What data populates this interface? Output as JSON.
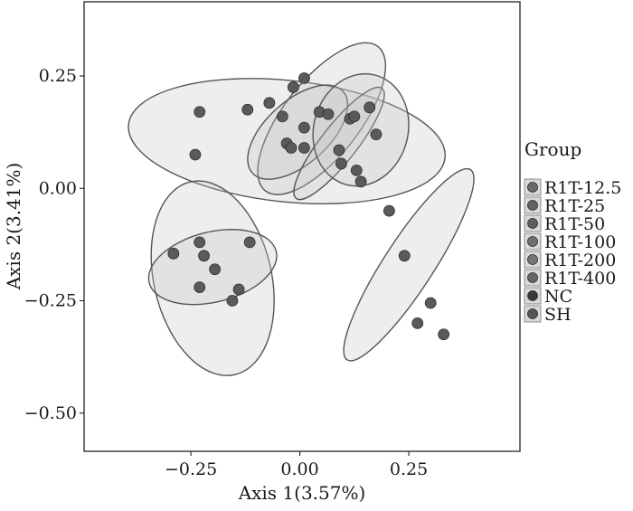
{
  "chart_data": {
    "type": "scatter",
    "xlabel": "Axis 1(3.57%)",
    "ylabel": "Axis 2(3.41%)",
    "xlim": [
      -0.495,
      0.505
    ],
    "ylim": [
      -0.585,
      0.415
    ],
    "xticks": [
      -0.25,
      0.0,
      0.25
    ],
    "yticks": [
      0.25,
      0.0,
      -0.25,
      -0.5
    ],
    "xtick_labels": [
      "−0.25",
      "0.00",
      "0.25"
    ],
    "ytick_labels": [
      "0.25",
      "0.00",
      "−0.25",
      "−0.50"
    ],
    "grid": false,
    "legend": {
      "title": "Group",
      "position": "right",
      "entries": [
        "R1T-12.5",
        "R1T-25",
        "R1T-50",
        "R1T-100",
        "R1T-200",
        "R1T-400",
        "NC",
        "SH"
      ]
    },
    "ellipses": [
      {
        "cx": -0.03,
        "cy": 0.105,
        "rx": 0.365,
        "ry": 0.135,
        "angle": 6
      },
      {
        "cx": 0.05,
        "cy": 0.155,
        "rx": 0.21,
        "ry": 0.085,
        "angle": -52
      },
      {
        "cx": -0.005,
        "cy": 0.125,
        "rx": 0.14,
        "ry": 0.07,
        "angle": -42
      },
      {
        "cx": 0.09,
        "cy": 0.1,
        "rx": 0.16,
        "ry": 0.04,
        "angle": -52
      },
      {
        "cx": 0.14,
        "cy": 0.13,
        "rx": 0.13,
        "ry": 0.105,
        "angle": -75
      },
      {
        "cx": 0.25,
        "cy": -0.17,
        "rx": 0.26,
        "ry": 0.055,
        "angle": -57
      },
      {
        "cx": -0.2,
        "cy": -0.2,
        "rx": 0.135,
        "ry": 0.22,
        "angle": -13
      },
      {
        "cx": -0.2,
        "cy": -0.175,
        "rx": 0.15,
        "ry": 0.078,
        "angle": -14
      }
    ],
    "points": [
      {
        "x": -0.23,
        "y": 0.17
      },
      {
        "x": -0.24,
        "y": 0.075
      },
      {
        "x": -0.12,
        "y": 0.175
      },
      {
        "x": -0.07,
        "y": 0.19
      },
      {
        "x": -0.04,
        "y": 0.16
      },
      {
        "x": -0.03,
        "y": 0.1
      },
      {
        "x": -0.02,
        "y": 0.09
      },
      {
        "x": -0.015,
        "y": 0.225
      },
      {
        "x": 0.01,
        "y": 0.245
      },
      {
        "x": 0.01,
        "y": 0.135
      },
      {
        "x": 0.01,
        "y": 0.09
      },
      {
        "x": 0.045,
        "y": 0.17
      },
      {
        "x": 0.065,
        "y": 0.165
      },
      {
        "x": 0.09,
        "y": 0.085
      },
      {
        "x": 0.095,
        "y": 0.055
      },
      {
        "x": 0.115,
        "y": 0.155
      },
      {
        "x": 0.125,
        "y": 0.16
      },
      {
        "x": 0.13,
        "y": 0.04
      },
      {
        "x": 0.14,
        "y": 0.015
      },
      {
        "x": 0.16,
        "y": 0.18
      },
      {
        "x": 0.175,
        "y": 0.12
      },
      {
        "x": 0.205,
        "y": -0.05
      },
      {
        "x": 0.24,
        "y": -0.15
      },
      {
        "x": 0.27,
        "y": -0.3
      },
      {
        "x": 0.3,
        "y": -0.255
      },
      {
        "x": 0.33,
        "y": -0.325
      },
      {
        "x": -0.29,
        "y": -0.145
      },
      {
        "x": -0.23,
        "y": -0.12
      },
      {
        "x": -0.22,
        "y": -0.15
      },
      {
        "x": -0.23,
        "y": -0.22
      },
      {
        "x": -0.195,
        "y": -0.18
      },
      {
        "x": -0.155,
        "y": -0.25
      },
      {
        "x": -0.14,
        "y": -0.225
      },
      {
        "x": -0.115,
        "y": -0.12
      }
    ],
    "colors": {
      "point_fill": "#5a5a5a",
      "point_stroke": "#2e2e2e",
      "ellipse_fill": "#c8c8c8",
      "ellipse_fill_opacity": 0.3,
      "ellipse_stroke": "#555555",
      "frame": "#333333",
      "legend_key_fill": "#d9d9d9",
      "legend_fills": [
        "#6a6a6a",
        "#636363",
        "#5e5e5e",
        "#707070",
        "#777777",
        "#666666",
        "#3a3a3a",
        "#555555"
      ]
    }
  }
}
